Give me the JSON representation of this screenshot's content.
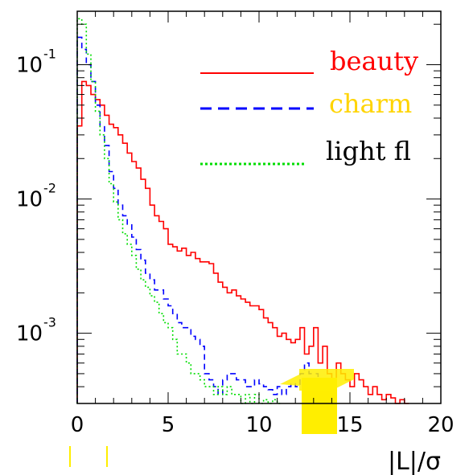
{
  "chart_data": {
    "type": "line",
    "title": "",
    "xlabel": "|L|/σ",
    "ylabel": "",
    "xlim": [
      0,
      20
    ],
    "ylim": [
      0.0003,
      0.25
    ],
    "yscale": "log",
    "x_ticks": [
      {
        "value": 0,
        "label": "0"
      },
      {
        "value": 5,
        "label": "5"
      },
      {
        "value": 10,
        "label": "10"
      },
      {
        "value": 15,
        "label": "15"
      },
      {
        "value": 20,
        "label": "20"
      }
    ],
    "y_ticks": [
      {
        "value": 0.1,
        "base": "10",
        "exp": "-1"
      },
      {
        "value": 0.01,
        "base": "10",
        "exp": "-2"
      },
      {
        "value": 0.001,
        "base": "10",
        "exp": "-3"
      }
    ],
    "legend_position": "top-right",
    "series": [
      {
        "name": "beauty",
        "color": "#ff0000",
        "style": "solid",
        "x": [
          0,
          0.25,
          0.5,
          0.75,
          1,
          1.25,
          1.5,
          1.75,
          2,
          2.25,
          2.5,
          2.75,
          3,
          3.25,
          3.5,
          3.75,
          4,
          4.25,
          4.5,
          4.75,
          5,
          5.25,
          5.5,
          5.75,
          6,
          6.25,
          6.5,
          6.75,
          7,
          7.25,
          7.5,
          7.75,
          8,
          8.25,
          8.5,
          8.75,
          9,
          9.25,
          9.5,
          9.75,
          10,
          10.25,
          10.5,
          10.75,
          11,
          11.25,
          11.5,
          11.75,
          12,
          12.25,
          12.5,
          12.75,
          13,
          13.25,
          13.5,
          13.75,
          14,
          14.25,
          14.5,
          14.75,
          15,
          15.25,
          15.5,
          15.75,
          16,
          16.25,
          16.5,
          16.75,
          17,
          17.25,
          17.5,
          17.75,
          18
        ],
        "values": [
          0.035,
          0.075,
          0.07,
          0.06,
          0.055,
          0.05,
          0.042,
          0.036,
          0.034,
          0.03,
          0.026,
          0.022,
          0.019,
          0.017,
          0.014,
          0.012,
          0.009,
          0.0075,
          0.0068,
          0.006,
          0.0046,
          0.0044,
          0.0041,
          0.0043,
          0.0038,
          0.004,
          0.0036,
          0.0034,
          0.0034,
          0.0033,
          0.0028,
          0.0024,
          0.0022,
          0.002,
          0.0021,
          0.0019,
          0.0018,
          0.0017,
          0.0016,
          0.0016,
          0.0015,
          0.0013,
          0.0012,
          0.0011,
          0.00095,
          0.001,
          0.0009,
          0.00085,
          0.0009,
          0.0011,
          0.0007,
          0.0008,
          0.0011,
          0.0006,
          0.0008,
          0.0005,
          0.0004,
          0.0006,
          0.0005,
          0.00045,
          0.0004,
          0.0005,
          0.00045,
          0.0004,
          0.00035,
          0.0004,
          0.00035,
          0.00032,
          0.00035,
          0.00033,
          0.0003,
          0.00032,
          0.0003
        ]
      },
      {
        "name": "charm",
        "color": "#0000ff",
        "label_color": "#ffd400",
        "style": "dashed",
        "x": [
          0,
          0.25,
          0.5,
          0.75,
          1,
          1.25,
          1.5,
          1.75,
          2,
          2.25,
          2.5,
          2.75,
          3,
          3.25,
          3.5,
          3.75,
          4,
          4.25,
          4.5,
          4.75,
          5,
          5.25,
          5.5,
          5.75,
          6,
          6.25,
          6.5,
          6.75,
          7,
          7.25,
          7.5,
          7.75,
          8,
          8.25,
          8.5,
          8.75,
          9,
          9.25,
          9.5,
          9.75,
          10,
          10.25,
          10.5,
          10.75,
          11,
          11.25,
          11.5,
          11.75,
          12,
          12.25,
          12.5,
          12.75,
          13,
          13.25,
          13.5,
          13.75,
          14
        ],
        "values": [
          0.16,
          0.13,
          0.1,
          0.075,
          0.05,
          0.035,
          0.025,
          0.016,
          0.012,
          0.009,
          0.0075,
          0.0065,
          0.0052,
          0.0042,
          0.0035,
          0.0028,
          0.0025,
          0.0021,
          0.0021,
          0.0018,
          0.0016,
          0.0014,
          0.0012,
          0.0011,
          0.0011,
          0.00095,
          0.0009,
          0.0008,
          0.0005,
          0.00045,
          0.0004,
          0.00035,
          0.00045,
          0.0005,
          0.0005,
          0.00045,
          0.00045,
          0.0004,
          0.0004,
          0.00045,
          0.00042,
          0.0004,
          0.00038,
          0.00035,
          0.0004,
          0.00035,
          0.0004,
          0.00042,
          0.0004,
          0.0005,
          0.0006,
          0.0005,
          0.0005,
          0.00045,
          0.0004,
          0.00038,
          0.00035
        ]
      },
      {
        "name": "light fl",
        "color": "#00dd00",
        "style": "dotted",
        "x": [
          0,
          0.25,
          0.5,
          0.75,
          1,
          1.25,
          1.5,
          1.75,
          2,
          2.25,
          2.5,
          2.75,
          3,
          3.25,
          3.5,
          3.75,
          4,
          4.25,
          4.5,
          4.75,
          5,
          5.25,
          5.5,
          5.75,
          6,
          6.25,
          6.5,
          6.75,
          7,
          7.25,
          7.5,
          7.75,
          8,
          8.25,
          8.5,
          8.75,
          9,
          9.25,
          9.5,
          9.75,
          10,
          10.25,
          10.5,
          10.75,
          11
        ],
        "values": [
          0.22,
          0.2,
          0.12,
          0.075,
          0.045,
          0.03,
          0.02,
          0.013,
          0.0095,
          0.007,
          0.0055,
          0.0046,
          0.0038,
          0.003,
          0.0025,
          0.0022,
          0.0019,
          0.0017,
          0.0014,
          0.0012,
          0.0011,
          0.0009,
          0.0007,
          0.0007,
          0.0006,
          0.0005,
          0.0005,
          0.00045,
          0.0004,
          0.0004,
          0.00035,
          0.0004,
          0.00035,
          0.0004,
          0.00035,
          0.00035,
          0.0003,
          0.00035,
          0.0003,
          0.00035,
          0.0003,
          0.00032,
          0.0003,
          0.00032,
          0.0003
        ]
      }
    ]
  }
}
